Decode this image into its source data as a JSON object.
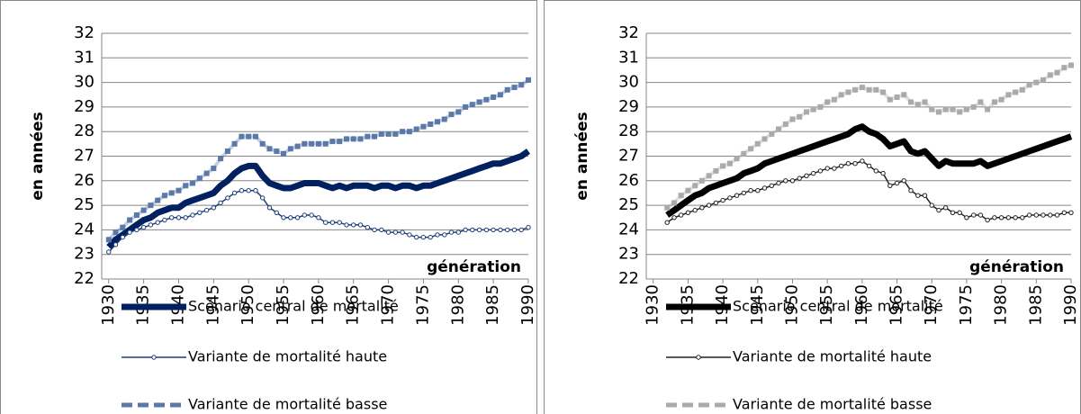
{
  "chart_data": [
    {
      "type": "line",
      "ylabel": "en années",
      "annotation": "génération",
      "x": [
        1930,
        1931,
        1932,
        1933,
        1934,
        1935,
        1936,
        1937,
        1938,
        1939,
        1940,
        1941,
        1942,
        1943,
        1944,
        1945,
        1946,
        1947,
        1948,
        1949,
        1950,
        1951,
        1952,
        1953,
        1954,
        1955,
        1956,
        1957,
        1958,
        1959,
        1960,
        1961,
        1962,
        1963,
        1964,
        1965,
        1966,
        1967,
        1968,
        1969,
        1970,
        1971,
        1972,
        1973,
        1974,
        1975,
        1976,
        1977,
        1978,
        1979,
        1980,
        1981,
        1982,
        1983,
        1984,
        1985,
        1986,
        1987,
        1988,
        1989,
        1990
      ],
      "xlim": [
        1929,
        1990
      ],
      "xticks": [
        1930,
        1935,
        1940,
        1945,
        1950,
        1955,
        1960,
        1965,
        1970,
        1975,
        1980,
        1985,
        1990
      ],
      "ylim": [
        22,
        32
      ],
      "yticks": [
        22,
        23,
        24,
        25,
        26,
        27,
        28,
        29,
        30,
        31,
        32
      ],
      "grid": true,
      "series": [
        {
          "name": "Scénario central de mortalité",
          "color": "#002060",
          "marker": "none",
          "dashed": false,
          "values": [
            23.3,
            23.6,
            23.8,
            24.0,
            24.2,
            24.4,
            24.5,
            24.7,
            24.8,
            24.9,
            24.9,
            25.1,
            25.2,
            25.3,
            25.4,
            25.5,
            25.8,
            26.0,
            26.3,
            26.5,
            26.6,
            26.6,
            26.2,
            25.9,
            25.8,
            25.7,
            25.7,
            25.8,
            25.9,
            25.9,
            25.9,
            25.8,
            25.7,
            25.8,
            25.7,
            25.8,
            25.8,
            25.8,
            25.7,
            25.8,
            25.8,
            25.7,
            25.8,
            25.8,
            25.7,
            25.8,
            25.8,
            25.9,
            26.0,
            26.1,
            26.2,
            26.3,
            26.4,
            26.5,
            26.6,
            26.7,
            26.7,
            26.8,
            26.9,
            27.0,
            27.2
          ]
        },
        {
          "name": "Variante de mortalité haute",
          "color": "#1f3c7a",
          "marker": "circle",
          "dashed": false,
          "values": [
            23.1,
            23.4,
            23.7,
            23.9,
            24.0,
            24.1,
            24.2,
            24.3,
            24.4,
            24.5,
            24.5,
            24.5,
            24.6,
            24.7,
            24.8,
            24.9,
            25.1,
            25.3,
            25.5,
            25.6,
            25.6,
            25.6,
            25.3,
            24.9,
            24.7,
            24.5,
            24.5,
            24.5,
            24.6,
            24.6,
            24.5,
            24.3,
            24.3,
            24.3,
            24.2,
            24.2,
            24.2,
            24.1,
            24.0,
            24.0,
            23.9,
            23.9,
            23.9,
            23.8,
            23.7,
            23.7,
            23.7,
            23.8,
            23.8,
            23.9,
            23.9,
            24.0,
            24.0,
            24.0,
            24.0,
            24.0,
            24.0,
            24.0,
            24.0,
            24.0,
            24.1
          ]
        },
        {
          "name": "Variante de mortalité basse",
          "color": "#5a78a8",
          "marker": "square",
          "dashed": true,
          "values": [
            23.6,
            23.9,
            24.1,
            24.4,
            24.6,
            24.8,
            25.0,
            25.2,
            25.4,
            25.5,
            25.6,
            25.8,
            25.9,
            26.1,
            26.3,
            26.5,
            26.9,
            27.2,
            27.5,
            27.8,
            27.8,
            27.8,
            27.5,
            27.3,
            27.2,
            27.1,
            27.3,
            27.4,
            27.5,
            27.5,
            27.5,
            27.5,
            27.6,
            27.6,
            27.7,
            27.7,
            27.7,
            27.8,
            27.8,
            27.9,
            27.9,
            27.9,
            28.0,
            28.0,
            28.1,
            28.2,
            28.3,
            28.4,
            28.5,
            28.7,
            28.8,
            29.0,
            29.1,
            29.2,
            29.3,
            29.4,
            29.5,
            29.7,
            29.8,
            29.9,
            30.1
          ]
        }
      ]
    },
    {
      "type": "line",
      "ylabel": "en années",
      "annotation": "génération",
      "x": [
        1932,
        1933,
        1934,
        1935,
        1936,
        1937,
        1938,
        1939,
        1940,
        1941,
        1942,
        1943,
        1944,
        1945,
        1946,
        1947,
        1948,
        1949,
        1950,
        1951,
        1952,
        1953,
        1954,
        1955,
        1956,
        1957,
        1958,
        1959,
        1960,
        1961,
        1962,
        1963,
        1964,
        1965,
        1966,
        1967,
        1968,
        1969,
        1970,
        1971,
        1972,
        1973,
        1974,
        1975,
        1976,
        1977,
        1978,
        1979,
        1980,
        1981,
        1982,
        1983,
        1984,
        1985,
        1986,
        1987,
        1988,
        1989,
        1990
      ],
      "xlim": [
        1929,
        1990
      ],
      "xticks": [
        1930,
        1935,
        1940,
        1945,
        1950,
        1955,
        1960,
        1965,
        1970,
        1975,
        1980,
        1985,
        1990
      ],
      "ylim": [
        22,
        32
      ],
      "yticks": [
        22,
        23,
        24,
        25,
        26,
        27,
        28,
        29,
        30,
        31,
        32
      ],
      "grid": true,
      "series": [
        {
          "name": "Scénario central de mortalité",
          "color": "#000000",
          "marker": "none",
          "dashed": false,
          "values": [
            24.6,
            24.8,
            25.0,
            25.2,
            25.4,
            25.5,
            25.7,
            25.8,
            25.9,
            26.0,
            26.1,
            26.3,
            26.4,
            26.5,
            26.7,
            26.8,
            26.9,
            27.0,
            27.1,
            27.2,
            27.3,
            27.4,
            27.5,
            27.6,
            27.7,
            27.8,
            27.9,
            28.1,
            28.2,
            28.0,
            27.9,
            27.7,
            27.4,
            27.5,
            27.6,
            27.2,
            27.1,
            27.2,
            26.9,
            26.6,
            26.8,
            26.7,
            26.7,
            26.7,
            26.7,
            26.8,
            26.6,
            26.7,
            26.8,
            26.9,
            27.0,
            27.1,
            27.2,
            27.3,
            27.4,
            27.5,
            27.6,
            27.7,
            27.8
          ]
        },
        {
          "name": "Variante de mortalité haute",
          "color": "#222222",
          "marker": "circle",
          "dashed": false,
          "values": [
            24.3,
            24.5,
            24.6,
            24.7,
            24.8,
            24.9,
            25.0,
            25.1,
            25.2,
            25.3,
            25.4,
            25.5,
            25.6,
            25.6,
            25.7,
            25.8,
            25.9,
            26.0,
            26.0,
            26.1,
            26.2,
            26.3,
            26.4,
            26.5,
            26.5,
            26.6,
            26.7,
            26.7,
            26.8,
            26.6,
            26.4,
            26.3,
            25.8,
            25.9,
            26.0,
            25.6,
            25.4,
            25.4,
            25.0,
            24.8,
            24.9,
            24.7,
            24.7,
            24.5,
            24.6,
            24.6,
            24.4,
            24.5,
            24.5,
            24.5,
            24.5,
            24.5,
            24.6,
            24.6,
            24.6,
            24.6,
            24.6,
            24.7,
            24.7
          ]
        },
        {
          "name": "Variante de mortalité basse",
          "color": "#aaaaaa",
          "marker": "square",
          "dashed": true,
          "values": [
            24.9,
            25.1,
            25.4,
            25.6,
            25.8,
            26.0,
            26.2,
            26.4,
            26.6,
            26.7,
            26.9,
            27.1,
            27.3,
            27.5,
            27.7,
            27.9,
            28.1,
            28.3,
            28.5,
            28.6,
            28.8,
            28.9,
            29.0,
            29.2,
            29.3,
            29.5,
            29.6,
            29.7,
            29.8,
            29.7,
            29.7,
            29.6,
            29.3,
            29.4,
            29.5,
            29.2,
            29.1,
            29.2,
            28.9,
            28.8,
            28.9,
            28.9,
            28.8,
            28.9,
            29.0,
            29.2,
            28.9,
            29.2,
            29.3,
            29.5,
            29.6,
            29.7,
            29.9,
            30.0,
            30.1,
            30.3,
            30.4,
            30.6,
            30.7
          ]
        }
      ]
    }
  ]
}
